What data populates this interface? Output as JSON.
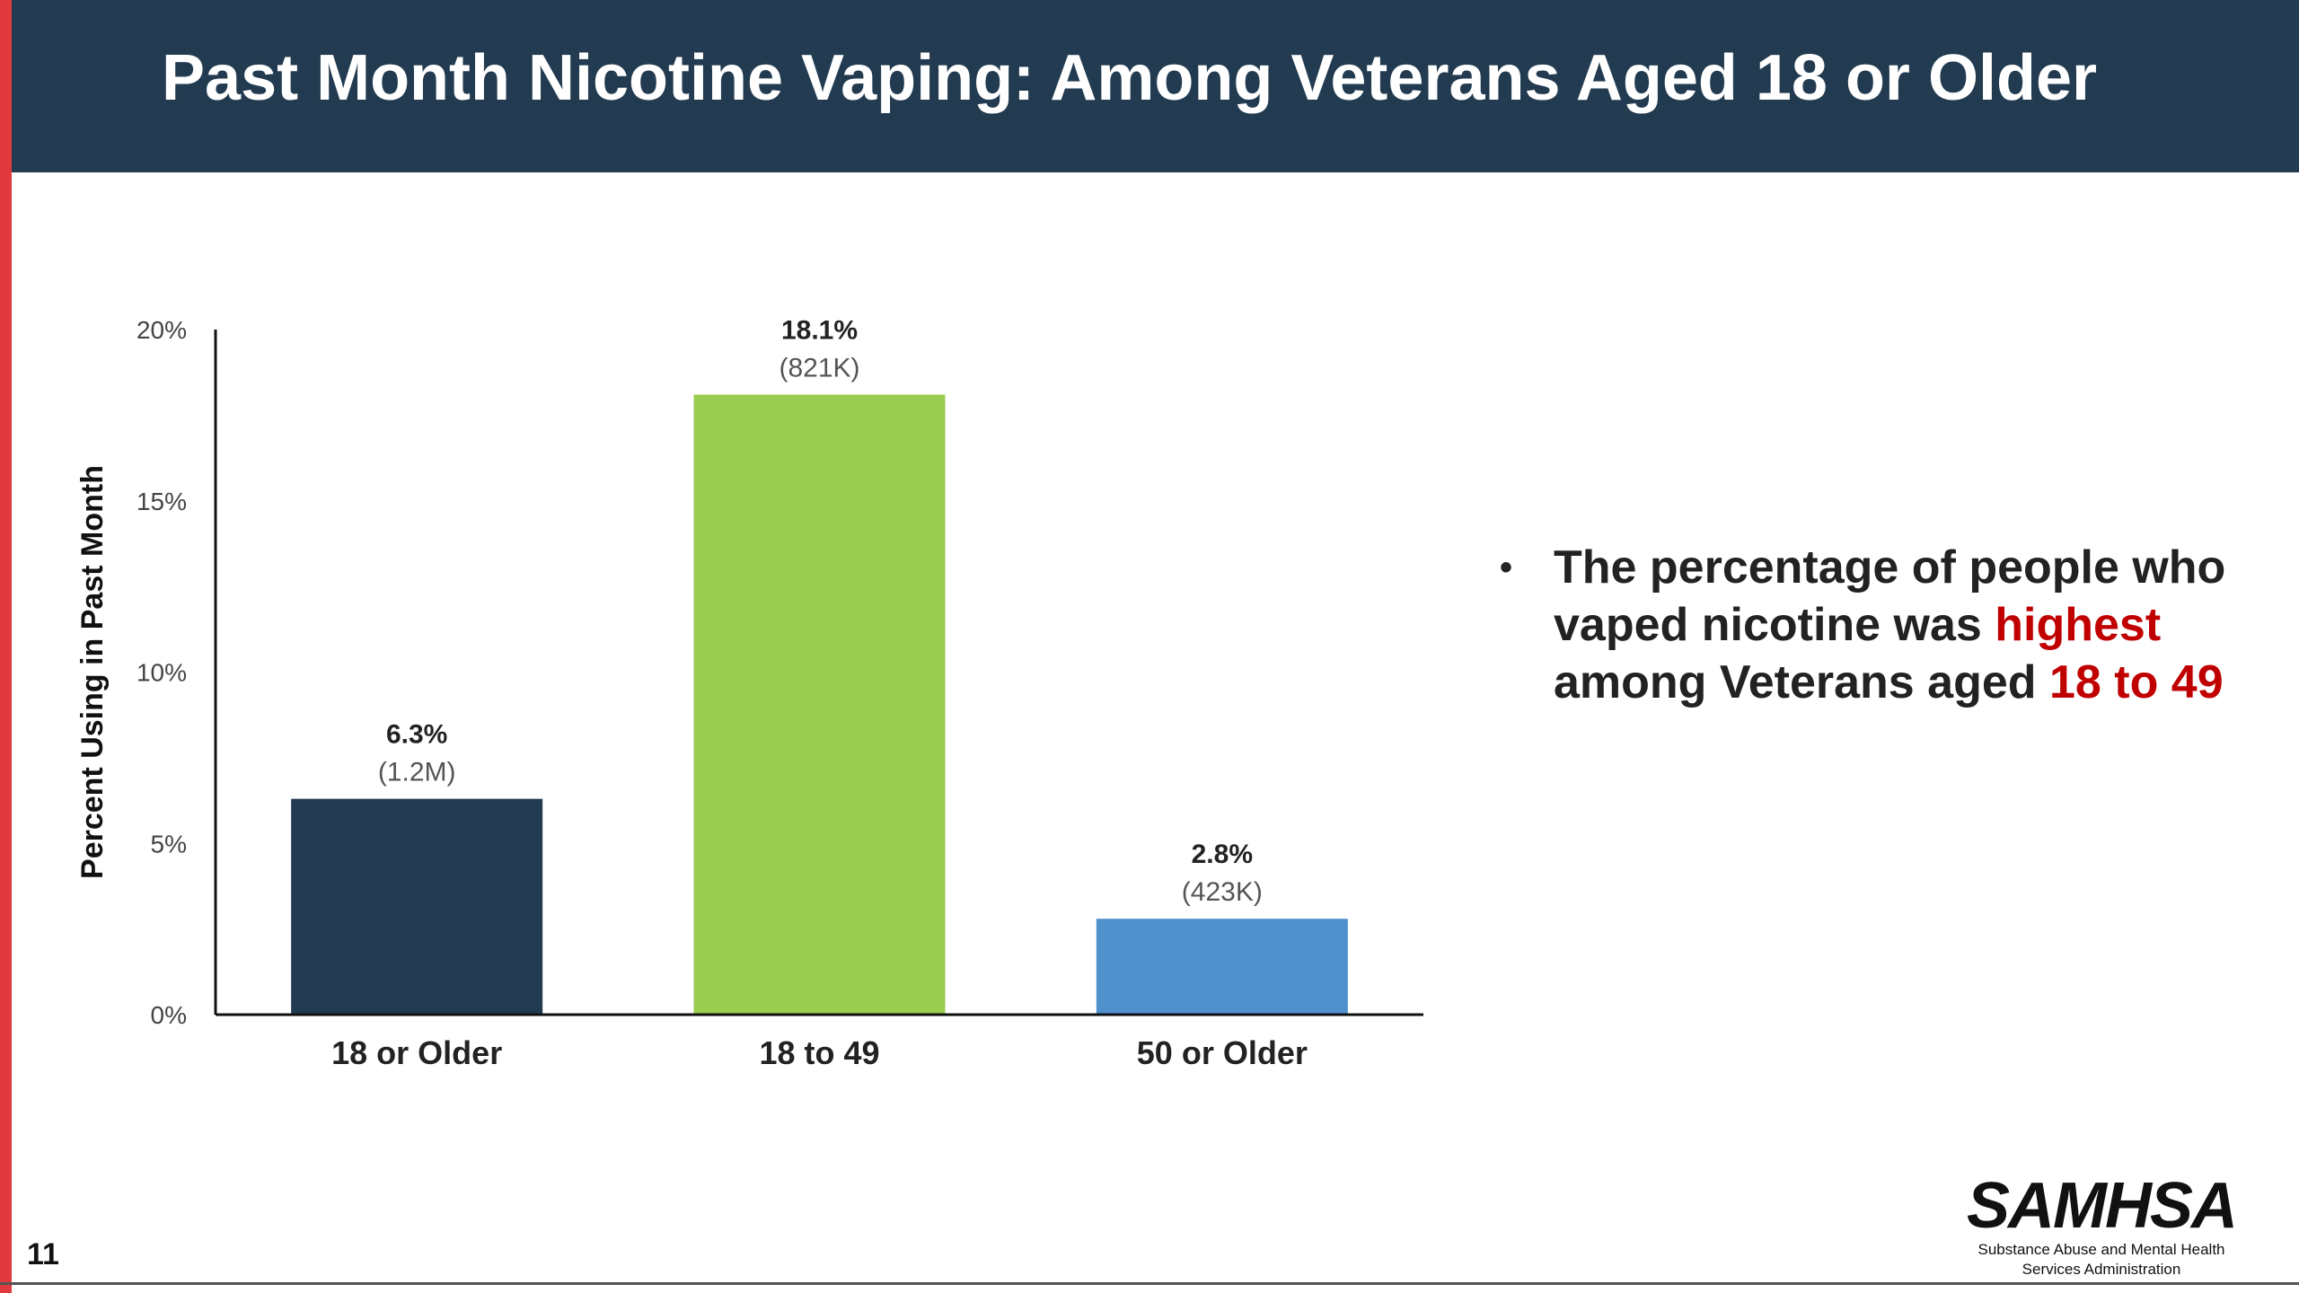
{
  "slide": {
    "title": "Past Month Nicotine Vaping: Among Veterans Aged 18 or Older",
    "page_number": "11",
    "colors": {
      "header": "#223b50",
      "accent_bar": "#e03a3e",
      "highlight": "#c00000"
    }
  },
  "bullet": {
    "text_before": "The percentage of people who vaped nicotine was ",
    "highlight1": "highest",
    "text_middle": " among Veterans aged ",
    "highlight2": "18 to 49"
  },
  "logo": {
    "name": "SAMHSA",
    "subtitle_line1": "Substance Abuse and Mental Health",
    "subtitle_line2": "Services Administration"
  },
  "chart_data": {
    "type": "bar",
    "categories": [
      "18 or Older",
      "18 to 49",
      "50 or Older"
    ],
    "values": [
      6.3,
      18.1,
      2.8
    ],
    "value_labels": [
      "6.3%",
      "18.1%",
      "2.8%"
    ],
    "count_labels": [
      "(1.2M)",
      "(821K)",
      "(423K)"
    ],
    "bar_colors": [
      "#223b50",
      "#99cc50",
      "#4f90cd"
    ],
    "ylabel": "Percent Using in Past Month",
    "ylim": [
      0,
      20
    ],
    "yticks": [
      0,
      5,
      10,
      15,
      20
    ],
    "ytick_labels": [
      "0%",
      "5%",
      "10%",
      "15%",
      "20%"
    ],
    "grid": false,
    "legend": "none"
  }
}
